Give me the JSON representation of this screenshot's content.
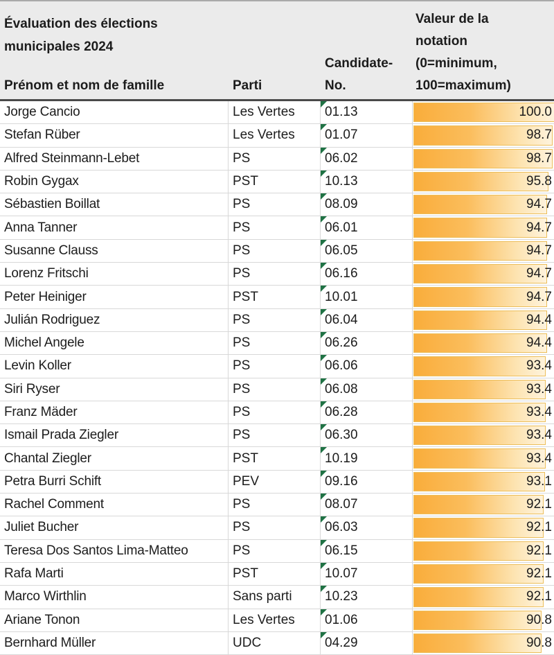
{
  "sheet": {
    "title": "Évaluation des élections municipales 2024",
    "columns": [
      "Prénom et nom de famille",
      "Parti",
      "Candidate-No.",
      "Valeur de la notation (0=minimum, 100=maximum)"
    ],
    "rating_scale": {
      "min": 0,
      "max": 100
    },
    "colors": {
      "header_bg": "#ebebeb",
      "gridline": "#d8d8d8",
      "bar_fill_start": "#f9ad3b",
      "bar_fill_end": "#fef3dd",
      "bar_border": "#ecbe5a",
      "error_triangle": "#1f7244"
    },
    "rows": [
      {
        "name": "Jorge Cancio",
        "party": "Les Vertes",
        "no": "01.13",
        "value": "100.0"
      },
      {
        "name": "Stefan Rüber",
        "party": "Les Vertes",
        "no": "01.07",
        "value": "98.7"
      },
      {
        "name": "Alfred Steinmann-Lebet",
        "party": "PS",
        "no": "06.02",
        "value": "98.7"
      },
      {
        "name": "Robin Gygax",
        "party": "PST",
        "no": "10.13",
        "value": "95.8"
      },
      {
        "name": "Sébastien Boillat",
        "party": "PS",
        "no": "08.09",
        "value": "94.7"
      },
      {
        "name": "Anna Tanner",
        "party": "PS",
        "no": "06.01",
        "value": "94.7"
      },
      {
        "name": "Susanne Clauss",
        "party": "PS",
        "no": "06.05",
        "value": "94.7"
      },
      {
        "name": "Lorenz Fritschi",
        "party": "PS",
        "no": "06.16",
        "value": "94.7"
      },
      {
        "name": "Peter Heiniger",
        "party": "PST",
        "no": "10.01",
        "value": "94.7"
      },
      {
        "name": "Julián Rodriguez",
        "party": "PS",
        "no": "06.04",
        "value": "94.4"
      },
      {
        "name": "Michel Angele",
        "party": "PS",
        "no": "06.26",
        "value": "94.4"
      },
      {
        "name": "Levin Koller",
        "party": "PS",
        "no": "06.06",
        "value": "93.4"
      },
      {
        "name": "Siri Ryser",
        "party": "PS",
        "no": "06.08",
        "value": "93.4"
      },
      {
        "name": "Franz Mäder",
        "party": "PS",
        "no": "06.28",
        "value": "93.4"
      },
      {
        "name": "Ismail Prada Ziegler",
        "party": "PS",
        "no": "06.30",
        "value": "93.4"
      },
      {
        "name": "Chantal Ziegler",
        "party": "PST",
        "no": "10.19",
        "value": "93.4"
      },
      {
        "name": "Petra Burri Schift",
        "party": "PEV",
        "no": "09.16",
        "value": "93.1"
      },
      {
        "name": "Rachel Comment",
        "party": "PS",
        "no": "08.07",
        "value": "92.1"
      },
      {
        "name": "Juliet Bucher",
        "party": "PS",
        "no": "06.03",
        "value": "92.1"
      },
      {
        "name": "Teresa Dos Santos Lima-Matteo",
        "party": "PS",
        "no": "06.15",
        "value": "92.1"
      },
      {
        "name": "Rafa Marti",
        "party": "PST",
        "no": "10.07",
        "value": "92.1"
      },
      {
        "name": "Marco Wirthlin",
        "party": "Sans parti",
        "no": "10.23",
        "value": "92.1"
      },
      {
        "name": "Ariane Tonon",
        "party": "Les Vertes",
        "no": "01.06",
        "value": "90.8"
      },
      {
        "name": "Bernhard Müller",
        "party": "UDC",
        "no": "04.29",
        "value": "90.8"
      }
    ]
  }
}
